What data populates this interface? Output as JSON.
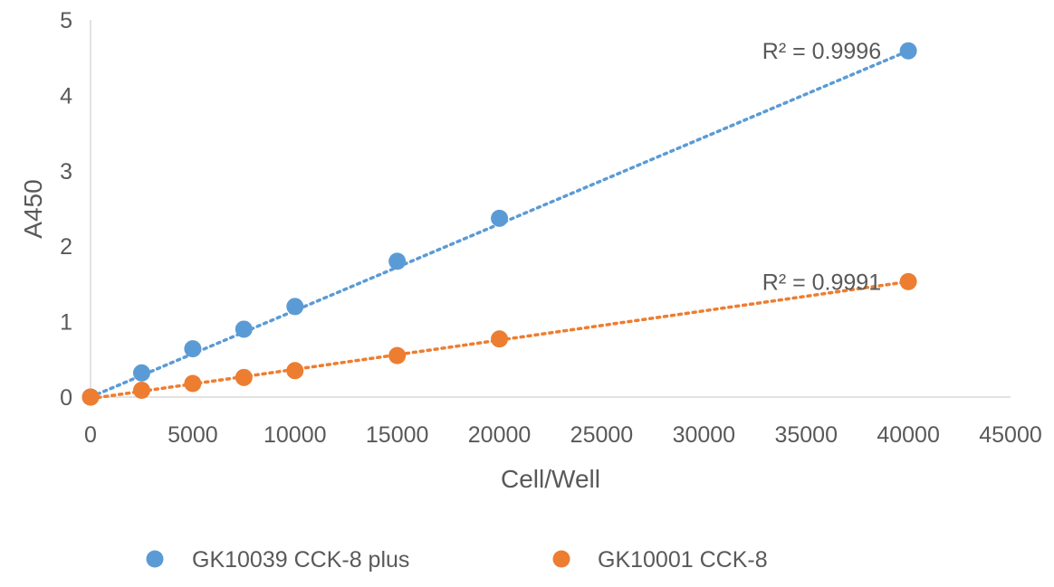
{
  "chart_data": {
    "type": "scatter",
    "title": "",
    "xlabel": "Cell/Well",
    "ylabel": "A450",
    "xlim": [
      0,
      45000
    ],
    "ylim": [
      0,
      5
    ],
    "x_ticks": [
      "0",
      "5000",
      "10000",
      "15000",
      "20000",
      "25000",
      "30000",
      "35000",
      "40000",
      "45000"
    ],
    "y_ticks": [
      "0",
      "1",
      "2",
      "3",
      "4",
      "5"
    ],
    "grid": false,
    "legend_position": "bottom",
    "series": [
      {
        "name": "GK10039  CCK-8 plus",
        "color": "#5B9BD5",
        "x": [
          0,
          2500,
          5000,
          7500,
          10000,
          15000,
          20000,
          40000
        ],
        "y": [
          0.0,
          0.32,
          0.64,
          0.9,
          1.2,
          1.8,
          2.37,
          4.59
        ],
        "trendline": "linear",
        "trendline_start": [
          0,
          0.0
        ],
        "trendline_end": [
          40000,
          4.59
        ],
        "r2_label": "R² = 0.9996"
      },
      {
        "name": "GK10001 CCK-8",
        "color": "#ED7D31",
        "x": [
          0,
          2500,
          5000,
          7500,
          10000,
          15000,
          20000,
          40000
        ],
        "y": [
          0.0,
          0.09,
          0.18,
          0.26,
          0.35,
          0.55,
          0.77,
          1.53
        ],
        "trendline": "linear",
        "trendline_start": [
          0,
          -0.02
        ],
        "trendline_end": [
          40000,
          1.53
        ],
        "r2_label": "R² = 0.9991"
      }
    ]
  }
}
